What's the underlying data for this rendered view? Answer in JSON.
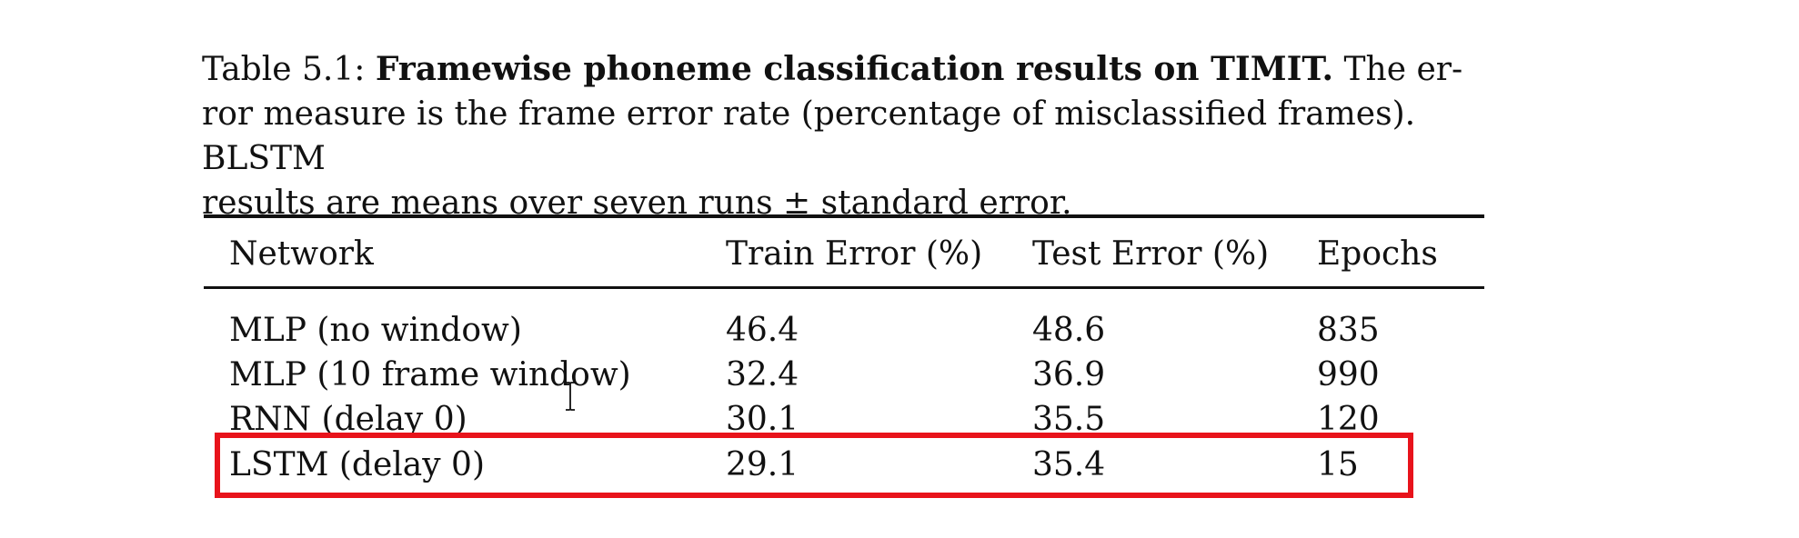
{
  "caption": {
    "label": "Table 5.1:",
    "title": "Framewise phoneme classification results on TIMIT.",
    "line1_rest": "The er-",
    "line2": "ror measure is the frame error rate (percentage of misclassified frames). BLSTM",
    "line3": "results are means over seven runs ± standard error."
  },
  "table": {
    "headers": [
      "Network",
      "Train Error (%)",
      "Test Error (%)",
      "Epochs"
    ],
    "rows": [
      [
        "MLP (no window)",
        "46.4",
        "48.6",
        "835"
      ],
      [
        "MLP (10 frame window)",
        "32.4",
        "36.9",
        "990"
      ],
      [
        "RNN (delay 0)",
        "30.1",
        "35.5",
        "120"
      ],
      [
        "LSTM (delay 0)",
        "29.1",
        "35.4",
        "15"
      ]
    ],
    "highlighted_row": 3
  },
  "colors": {
    "highlight_border": "#e8131b",
    "text": "#111111"
  },
  "icons": {
    "cursor": "text-cursor-icon"
  }
}
